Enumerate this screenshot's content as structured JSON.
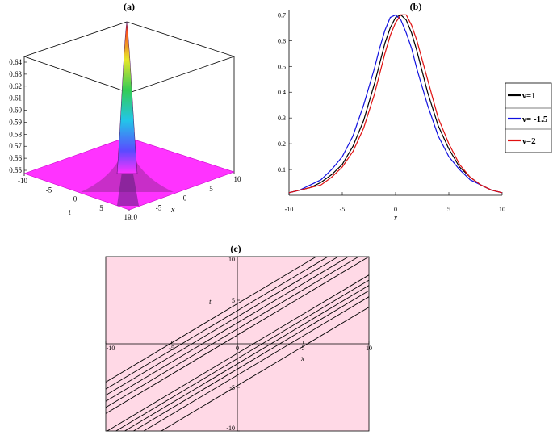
{
  "panels": {
    "a": {
      "label": "(a)"
    },
    "b": {
      "label": "(b)"
    },
    "c": {
      "label": "(c)"
    }
  },
  "chart_data": [
    {
      "id": "a",
      "type": "surface3d",
      "title": "(a)",
      "xlabel": "x",
      "ylabel": "t",
      "zlabel": "",
      "x_ticks": [
        "-10",
        "-5",
        "0",
        "5",
        "10"
      ],
      "t_ticks": [
        "-10",
        "-5",
        "0",
        "5",
        "10"
      ],
      "z_ticks": [
        "0.55",
        "0.56",
        "0.57",
        "0.58",
        "0.59",
        "0.60",
        "0.61",
        "0.62",
        "0.63",
        "0.64"
      ],
      "zlim": [
        0.545,
        0.648
      ],
      "colors": {
        "base": "#ff33ff",
        "peak": "#ff0000"
      }
    },
    {
      "id": "b",
      "type": "line",
      "title": "(b)",
      "xlabel": "x",
      "ylabel": "",
      "xlim": [
        -10,
        10
      ],
      "ylim": [
        0,
        0.72
      ],
      "x_ticks": [
        -10,
        -5,
        0,
        5,
        10
      ],
      "y_ticks": [
        0.1,
        0.2,
        0.3,
        0.4,
        0.5,
        0.6,
        0.7
      ],
      "x": [
        -10,
        -9,
        -8,
        -7,
        -6,
        -5,
        -4,
        -3,
        -2,
        -1.5,
        -1,
        -0.5,
        0,
        0.5,
        1,
        1.5,
        2,
        3,
        4,
        5,
        6,
        7,
        8,
        9,
        10
      ],
      "series": [
        {
          "name": "ν=1",
          "color": "#000000",
          "values": [
            0.01,
            0.02,
            0.03,
            0.05,
            0.08,
            0.12,
            0.19,
            0.29,
            0.43,
            0.51,
            0.59,
            0.65,
            0.69,
            0.7,
            0.68,
            0.63,
            0.56,
            0.4,
            0.27,
            0.18,
            0.11,
            0.07,
            0.04,
            0.02,
            0.01
          ]
        },
        {
          "name": "ν= -1.5",
          "color": "#1010e0",
          "values": [
            0.01,
            0.02,
            0.04,
            0.06,
            0.1,
            0.15,
            0.23,
            0.35,
            0.49,
            0.57,
            0.64,
            0.69,
            0.7,
            0.68,
            0.63,
            0.57,
            0.49,
            0.35,
            0.23,
            0.15,
            0.1,
            0.06,
            0.04,
            0.02,
            0.01
          ]
        },
        {
          "name": "ν=2",
          "color": "#e01010",
          "values": [
            0.01,
            0.02,
            0.03,
            0.04,
            0.07,
            0.11,
            0.17,
            0.26,
            0.39,
            0.47,
            0.55,
            0.62,
            0.67,
            0.7,
            0.7,
            0.66,
            0.6,
            0.45,
            0.3,
            0.2,
            0.12,
            0.07,
            0.04,
            0.02,
            0.01
          ]
        }
      ],
      "legend_position": "right"
    },
    {
      "id": "c",
      "type": "contour",
      "title": "(c)",
      "xlabel": "x",
      "ylabel": "t",
      "xlim": [
        -10,
        10
      ],
      "ylim": [
        -10,
        10
      ],
      "x_ticks": [
        -10,
        -5,
        0,
        5,
        10
      ],
      "y_ticks": [
        -10,
        -5,
        5,
        10
      ],
      "background": "#ffd9e6",
      "line_color": "#000000",
      "slope": 0.9,
      "intercepts": [
        -4.8,
        -3.6,
        -2.9,
        -2.3,
        -1.7,
        -1.1,
        1.0,
        1.7,
        2.4,
        3.1,
        3.8,
        4.6
      ]
    }
  ]
}
